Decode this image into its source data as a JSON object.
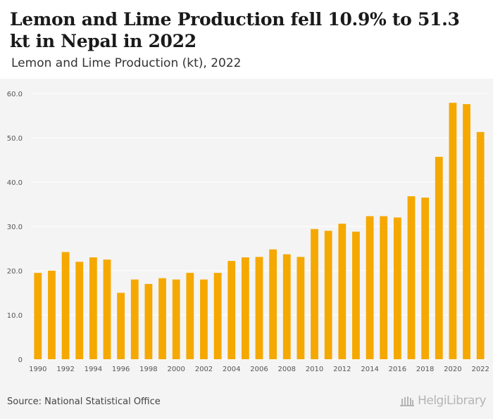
{
  "header": {
    "title": "Lemon and Lime Production fell 10.9% to 51.3 kt in Nepal in 2022",
    "subtitle": "Lemon and Lime Production (kt), 2022"
  },
  "footer": {
    "source": "Source: National Statistical Office",
    "logo_text": "HelgiLibrary"
  },
  "colors": {
    "bar": "#F5A800",
    "background": "#f4f4f4",
    "grid": "#ffffff"
  },
  "chart_data": {
    "type": "bar",
    "categories": [
      "1990",
      "1991",
      "1992",
      "1993",
      "1994",
      "1995",
      "1996",
      "1997",
      "1998",
      "1999",
      "2000",
      "2001",
      "2002",
      "2003",
      "2004",
      "2005",
      "2006",
      "2007",
      "2008",
      "2009",
      "2010",
      "2011",
      "2012",
      "2013",
      "2014",
      "2015",
      "2016",
      "2017",
      "2018",
      "2019",
      "2020",
      "2021",
      "2022"
    ],
    "values": [
      19.5,
      20.0,
      24.2,
      22.0,
      23.0,
      22.5,
      15.0,
      18.0,
      17.0,
      18.3,
      18.0,
      19.5,
      18.0,
      19.5,
      22.2,
      23.0,
      23.1,
      24.8,
      23.7,
      23.1,
      29.4,
      29.0,
      30.6,
      28.8,
      32.3,
      32.3,
      32.0,
      36.8,
      36.5,
      45.7,
      57.9,
      57.6,
      51.3
    ],
    "ylim": [
      0,
      60
    ],
    "yticks": [
      "0",
      "10.0",
      "20.0",
      "30.0",
      "40.0",
      "50.0",
      "60.0"
    ],
    "xtick_labels": [
      "1990",
      "1992",
      "1994",
      "1996",
      "1998",
      "2000",
      "2002",
      "2004",
      "2006",
      "2008",
      "2010",
      "2012",
      "2014",
      "2016",
      "2018",
      "2020",
      "2022"
    ],
    "grid": true
  }
}
